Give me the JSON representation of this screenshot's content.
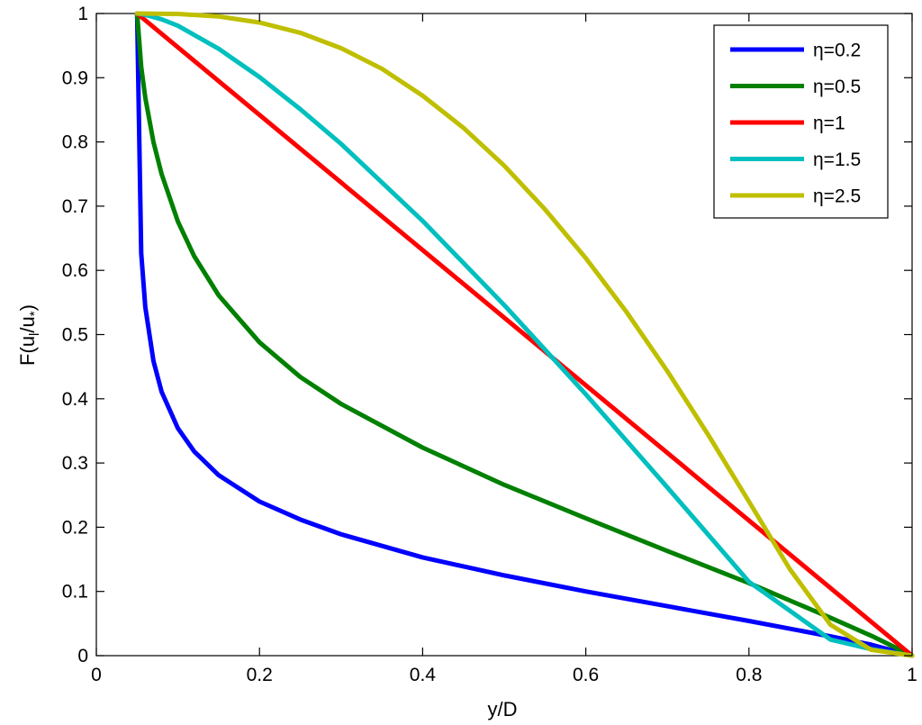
{
  "chart_data": {
    "type": "line",
    "xlabel": "y/D",
    "ylabel": "F(u_l/u_*)",
    "ylabel_parts": {
      "lead": "F(u",
      "sub1": "l",
      "mid": "/u",
      "sub2": "*",
      "tail": ")"
    },
    "xlim": [
      0,
      1
    ],
    "ylim": [
      0,
      1
    ],
    "xticks": [
      0,
      0.2,
      0.4,
      0.6,
      0.8,
      1
    ],
    "xtick_labels": [
      "0",
      "0.2",
      "0.4",
      "0.6",
      "0.8",
      "1"
    ],
    "yticks": [
      0,
      0.1,
      0.2,
      0.3,
      0.4,
      0.5,
      0.6,
      0.7,
      0.8,
      0.9,
      1
    ],
    "ytick_labels": [
      "0",
      "0.1",
      "0.2",
      "0.3",
      "0.4",
      "0.5",
      "0.6",
      "0.7",
      "0.8",
      "0.9",
      "1"
    ],
    "grid": false,
    "legend_position": "top-right",
    "series": [
      {
        "name": "η=0.2",
        "color": "#0000ff",
        "x": [
          0.05,
          0.055,
          0.06,
          0.07,
          0.08,
          0.1,
          0.12,
          0.15,
          0.2,
          0.25,
          0.3,
          0.4,
          0.5,
          0.6,
          0.7,
          0.8,
          0.9,
          0.95,
          1.0
        ],
        "y": [
          1.0,
          0.627,
          0.543,
          0.459,
          0.411,
          0.354,
          0.318,
          0.281,
          0.24,
          0.212,
          0.189,
          0.153,
          0.125,
          0.1,
          0.077,
          0.054,
          0.03,
          0.017,
          0.0
        ]
      },
      {
        "name": "η=0.5",
        "color": "#008000",
        "x": [
          0.05,
          0.055,
          0.06,
          0.07,
          0.08,
          0.1,
          0.12,
          0.15,
          0.2,
          0.25,
          0.3,
          0.4,
          0.5,
          0.6,
          0.7,
          0.8,
          0.9,
          0.95,
          1.0
        ],
        "y": [
          1.0,
          0.917,
          0.869,
          0.8,
          0.75,
          0.676,
          0.622,
          0.561,
          0.488,
          0.434,
          0.392,
          0.324,
          0.266,
          0.214,
          0.163,
          0.113,
          0.059,
          0.031,
          0.0
        ]
      },
      {
        "name": "η=1",
        "color": "#ff0000",
        "x": [
          0.05,
          1.0
        ],
        "y": [
          1.0,
          0.0
        ]
      },
      {
        "name": "η=1.5",
        "color": "#00bfbf",
        "x": [
          0.05,
          0.06,
          0.08,
          0.1,
          0.15,
          0.2,
          0.25,
          0.3,
          0.4,
          0.5,
          0.6,
          0.7,
          0.8,
          0.9,
          0.95,
          1.0
        ],
        "y": [
          1.0,
          0.998,
          0.991,
          0.981,
          0.945,
          0.901,
          0.851,
          0.797,
          0.677,
          0.546,
          0.407,
          0.262,
          0.115,
          0.025,
          0.01,
          0.0
        ]
      },
      {
        "name": "η=2.5",
        "color": "#bfbf00",
        "x": [
          0.05,
          0.1,
          0.15,
          0.2,
          0.25,
          0.3,
          0.35,
          0.4,
          0.45,
          0.5,
          0.55,
          0.6,
          0.65,
          0.7,
          0.75,
          0.8,
          0.85,
          0.9,
          0.95,
          1.0
        ],
        "y": [
          1.0,
          0.9993,
          0.9954,
          0.986,
          0.97,
          0.946,
          0.914,
          0.872,
          0.822,
          0.763,
          0.695,
          0.619,
          0.535,
          0.443,
          0.344,
          0.24,
          0.135,
          0.048,
          0.009,
          0.0
        ]
      }
    ]
  }
}
